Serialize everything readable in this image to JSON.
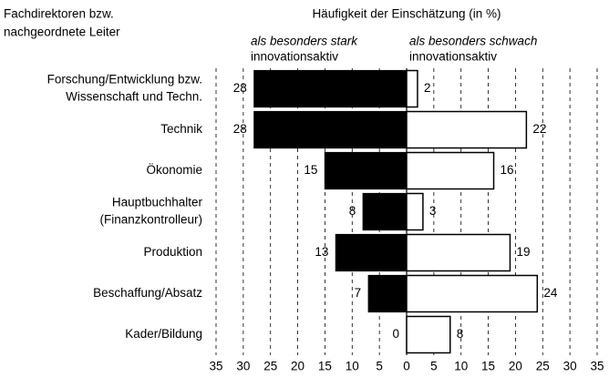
{
  "chart_data": {
    "type": "diverging-bar",
    "title": "Häufigkeit der Einschätzung (in %)",
    "category_header": [
      "Fachdirektoren bzw.",
      "nachgeordnete Leiter"
    ],
    "categories": [
      [
        "Forschung/Entwicklung bzw.",
        "Wissenschaft und Techn."
      ],
      [
        "Technik"
      ],
      [
        "Ökonomie"
      ],
      [
        "Hauptbuchhalter",
        "(Finanzkontrolleur)"
      ],
      [
        "Produktion"
      ],
      [
        "Beschaffung/Absatz"
      ],
      [
        "Kader/Bildung"
      ]
    ],
    "series": [
      {
        "name": [
          "als besonders stark",
          "innovationsaktiv"
        ],
        "color": "#000000",
        "side": "left",
        "values": [
          28,
          28,
          15,
          8,
          13,
          7,
          0
        ]
      },
      {
        "name": [
          "als besonders schwach",
          "innovationsaktiv"
        ],
        "color": "#ffffff",
        "side": "right",
        "values": [
          2,
          22,
          16,
          3,
          19,
          24,
          8
        ]
      }
    ],
    "xlim_left": [
      35,
      0
    ],
    "xticks_left": [
      35,
      30,
      25,
      20,
      15,
      10,
      5
    ],
    "xlim": [
      0,
      35
    ],
    "xticks": [
      0,
      5,
      10,
      15,
      20,
      25,
      30,
      35
    ],
    "grid": true
  }
}
